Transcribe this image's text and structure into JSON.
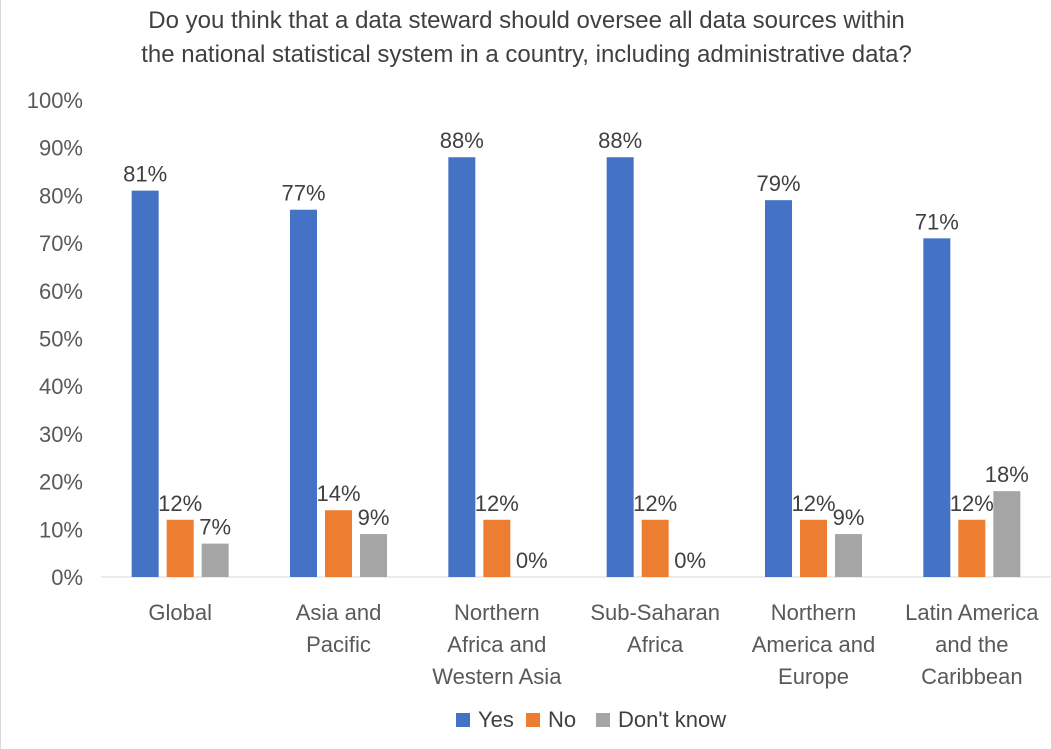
{
  "chart_data": {
    "type": "bar",
    "title": "Do you think that a data steward should oversee all data sources within the national statistical system in a country, including administrative data?",
    "title_lines": [
      "Do you think that a data steward should oversee all data sources within",
      "the national statistical system in a country, including administrative data?"
    ],
    "categories": [
      "Global",
      "Asia and Pacific",
      "Northern Africa and Western Asia",
      "Sub-Saharan Africa",
      "Northern America and Europe",
      "Latin America and the Caribbean"
    ],
    "category_lines": [
      [
        "Global"
      ],
      [
        "Asia and",
        "Pacific"
      ],
      [
        "Northern",
        "Africa and",
        "Western Asia"
      ],
      [
        "Sub-Saharan",
        "Africa"
      ],
      [
        "Northern",
        "America and",
        "Europe"
      ],
      [
        "Latin America",
        "and the",
        "Caribbean"
      ]
    ],
    "series": [
      {
        "name": "Yes",
        "color": "#4472c4",
        "values": [
          81,
          77,
          88,
          88,
          79,
          71
        ]
      },
      {
        "name": "No",
        "color": "#ed7d31",
        "values": [
          12,
          14,
          12,
          12,
          12,
          12
        ]
      },
      {
        "name": "Don't know",
        "color": "#a5a5a5",
        "values": [
          7,
          9,
          0,
          0,
          9,
          18
        ]
      }
    ],
    "value_suffix": "%",
    "ylim": [
      0,
      100
    ],
    "yticks": [
      "0%",
      "10%",
      "20%",
      "30%",
      "40%",
      "50%",
      "60%",
      "70%",
      "80%",
      "90%",
      "100%"
    ],
    "xlabel": "",
    "ylabel": "",
    "grid": false,
    "legend_position": "bottom"
  }
}
